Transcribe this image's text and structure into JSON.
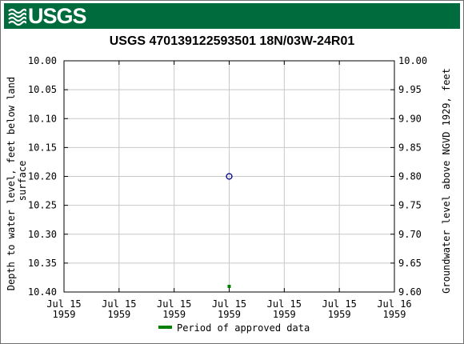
{
  "header": {
    "logo_text": "USGS",
    "brand_color": "#006c3e"
  },
  "chart_data": {
    "type": "scatter",
    "title": "USGS 470139122593501 18N/03W-24R01",
    "ylabel_left": "Depth to water level, feet below land surface",
    "ylabel_right": "Groundwater level above NGVD 1929, feet",
    "ylim_left": [
      10.4,
      10.0
    ],
    "ylim_right": [
      9.6,
      10.0
    ],
    "yticks_left": [
      "10.00",
      "10.05",
      "10.10",
      "10.15",
      "10.20",
      "10.25",
      "10.30",
      "10.35",
      "10.40"
    ],
    "yticks_right": [
      "10.00",
      "9.95",
      "9.90",
      "9.85",
      "9.80",
      "9.75",
      "9.70",
      "9.65",
      "9.60"
    ],
    "xticks": [
      [
        "Jul 15",
        "1959"
      ],
      [
        "Jul 15",
        "1959"
      ],
      [
        "Jul 15",
        "1959"
      ],
      [
        "Jul 15",
        "1959"
      ],
      [
        "Jul 15",
        "1959"
      ],
      [
        "Jul 15",
        "1959"
      ],
      [
        "Jul 16",
        "1959"
      ]
    ],
    "grid": true,
    "series": [
      {
        "name": "",
        "marker": "open-circle",
        "color": "#00008b",
        "points": [
          {
            "x_tick_index": 3,
            "depth": 10.2
          }
        ]
      }
    ],
    "approved_period": {
      "color": "#008000",
      "x_tick_index": 3
    },
    "legend": {
      "label": "Period of approved data",
      "placement": "bottom-center"
    }
  }
}
